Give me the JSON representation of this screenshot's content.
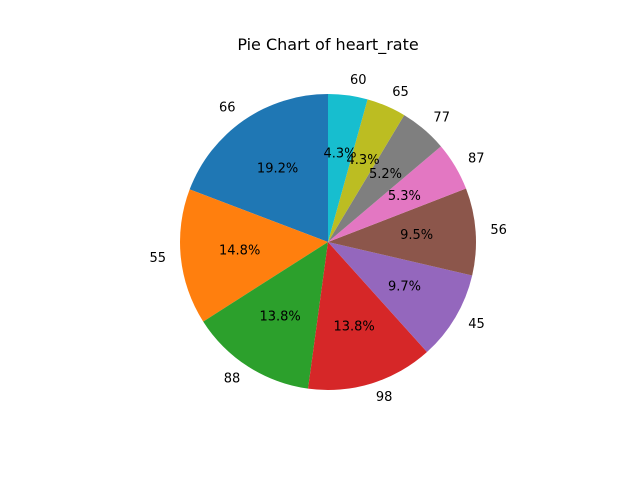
{
  "chart_data": {
    "type": "pie",
    "title": "Pie Chart of heart_rate",
    "labels": [
      "66",
      "55",
      "88",
      "98",
      "45",
      "56",
      "87",
      "77",
      "65",
      "60"
    ],
    "percent_labels": [
      "19.2%",
      "14.8%",
      "13.8%",
      "13.8%",
      "9.7%",
      "9.5%",
      "5.3%",
      "5.2%",
      "4.3%",
      "4.3%"
    ],
    "values": [
      19.2,
      14.8,
      13.8,
      13.8,
      9.7,
      9.5,
      5.3,
      5.2,
      4.3,
      4.3
    ],
    "colors": [
      "#1f77b4",
      "#ff7f0e",
      "#2ca02c",
      "#d62728",
      "#9467bd",
      "#8c564b",
      "#e377c2",
      "#7f7f7f",
      "#bcbd22",
      "#17becf"
    ],
    "start_angle_deg": 90,
    "direction": "counterclockwise"
  }
}
